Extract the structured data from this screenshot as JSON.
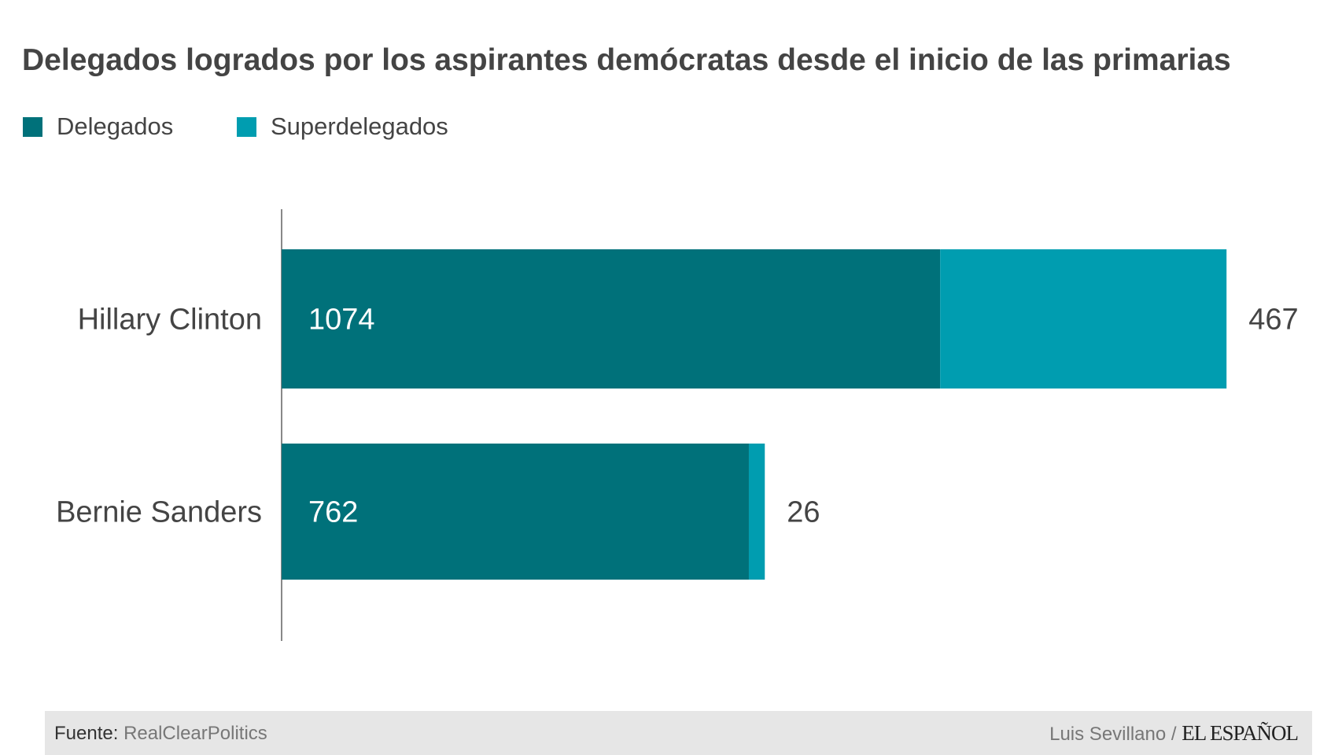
{
  "chart_data": {
    "type": "bar",
    "orientation": "horizontal",
    "stacked": true,
    "title": "Delegados logrados por los aspirantes demócratas desde el inicio de las primarias",
    "categories": [
      "Hillary Clinton",
      "Bernie Sanders"
    ],
    "series": [
      {
        "name": "Delegados",
        "values": [
          1074,
          762
        ],
        "color": "#00717a"
      },
      {
        "name": "Superdelegados",
        "values": [
          467,
          26
        ],
        "color": "#009db0"
      }
    ],
    "legend": "top-left",
    "grid": false
  },
  "footer": {
    "source_label": "Fuente:",
    "source": "RealClearPolitics",
    "author": "Luis Sevillano /",
    "logo": "EL ESPAÑOL"
  }
}
